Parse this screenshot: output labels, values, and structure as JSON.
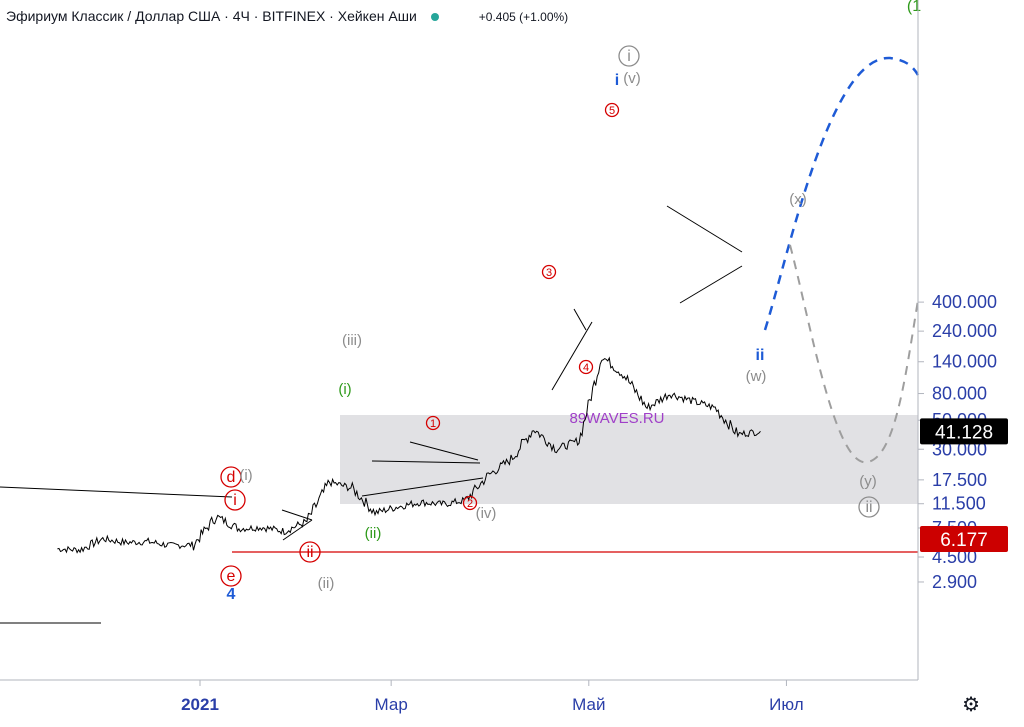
{
  "header": {
    "title": "Эфириум Классик / Доллар США · 4Ч · BITFINEX · Хейкен Аши",
    "change": "+0.405 (+1.00%)"
  },
  "colors": {
    "axis_text": "#2a3ea8",
    "price_line": "#000000",
    "support_line": "#d50000",
    "projection_blue": "#1e5bd6",
    "projection_gray": "#9e9e9e",
    "box_fill": "#c8c9ce",
    "wave_red": "#d50000",
    "wave_green": "#2e9a1a",
    "wave_gray": "#8c8c8c",
    "wave_blue": "#1e5bd6"
  },
  "chart_data": {
    "type": "line",
    "title": "Эфириум Классик / Доллар США · 4Ч · BITFINEX · Хейкен Аши",
    "scale": "log",
    "grid": false,
    "y_ticks": [
      "2.900",
      "4.500",
      "7.500",
      "11.500",
      "17.500",
      "30.000",
      "50.000",
      "80.000",
      "140.000",
      "240.000",
      "400.000"
    ],
    "x_ticks": [
      "2021",
      "Мар",
      "Май",
      "Июл"
    ],
    "x": [
      "2020-11-18",
      "2020-11-25",
      "2020-12-02",
      "2020-12-09",
      "2020-12-16",
      "2020-12-23",
      "2020-12-30",
      "2021-01-06",
      "2021-01-13",
      "2021-01-20",
      "2021-01-27",
      "2021-02-03",
      "2021-02-10",
      "2021-02-17",
      "2021-02-24",
      "2021-03-03",
      "2021-03-10",
      "2021-03-17",
      "2021-03-24",
      "2021-03-31",
      "2021-04-07",
      "2021-04-14",
      "2021-04-21",
      "2021-04-28",
      "2021-05-05",
      "2021-05-12",
      "2021-05-19",
      "2021-05-26",
      "2021-06-02",
      "2021-06-09",
      "2021-06-16",
      "2021-06-23"
    ],
    "series": [
      {
        "values": [
          5.2,
          5.1,
          6.2,
          5.8,
          5.9,
          5.5,
          5.6,
          9.2,
          7.4,
          7.6,
          7.1,
          8.4,
          16.8,
          15.1,
          9.8,
          10.9,
          11.8,
          11.4,
          12.2,
          19.0,
          25.0,
          43.0,
          30.0,
          35.0,
          155.0,
          110.0,
          62.0,
          80.0,
          70.0,
          62.0,
          39.0,
          41.128
        ]
      }
    ],
    "last_price": "41.128",
    "support_price": "6.177",
    "watermark": "89WAVES.RU",
    "wave_labels": [
      {
        "text": "d",
        "color": "red",
        "circled": true
      },
      {
        "text": "i",
        "color": "red",
        "circled": true
      },
      {
        "text": "e",
        "color": "red",
        "circled": true
      },
      {
        "text": "4",
        "color": "blue",
        "circled": false
      },
      {
        "text": "(i)",
        "color": "gray",
        "circled": false
      },
      {
        "text": "ii",
        "color": "red",
        "circled": true
      },
      {
        "text": "(ii)",
        "color": "gray",
        "circled": false
      },
      {
        "text": "(iii)",
        "color": "gray",
        "circled": false
      },
      {
        "text": "(i)",
        "color": "green",
        "circled": false
      },
      {
        "text": "(ii)",
        "color": "green",
        "circled": false
      },
      {
        "text": "1",
        "color": "red",
        "circled": true
      },
      {
        "text": "2",
        "color": "red",
        "circled": true
      },
      {
        "text": "(iv)",
        "color": "gray",
        "circled": false
      },
      {
        "text": "3",
        "color": "red",
        "circled": true
      },
      {
        "text": "4",
        "color": "red",
        "circled": true
      },
      {
        "text": "5",
        "color": "red",
        "circled": true
      },
      {
        "text": "i",
        "color": "gray",
        "circled": true
      },
      {
        "text": "i",
        "color": "blue",
        "circled": false
      },
      {
        "text": "(v)",
        "color": "gray",
        "circled": false
      },
      {
        "text": "(x)",
        "color": "gray",
        "circled": false
      },
      {
        "text": "ii",
        "color": "blue",
        "circled": false
      },
      {
        "text": "(w)",
        "color": "gray",
        "circled": false
      },
      {
        "text": "(y)",
        "color": "gray",
        "circled": false
      },
      {
        "text": "ii",
        "color": "gray",
        "circled": true
      },
      {
        "text": "(1",
        "color": "green",
        "circled": false
      }
    ]
  },
  "settings_icon": "gear-icon"
}
